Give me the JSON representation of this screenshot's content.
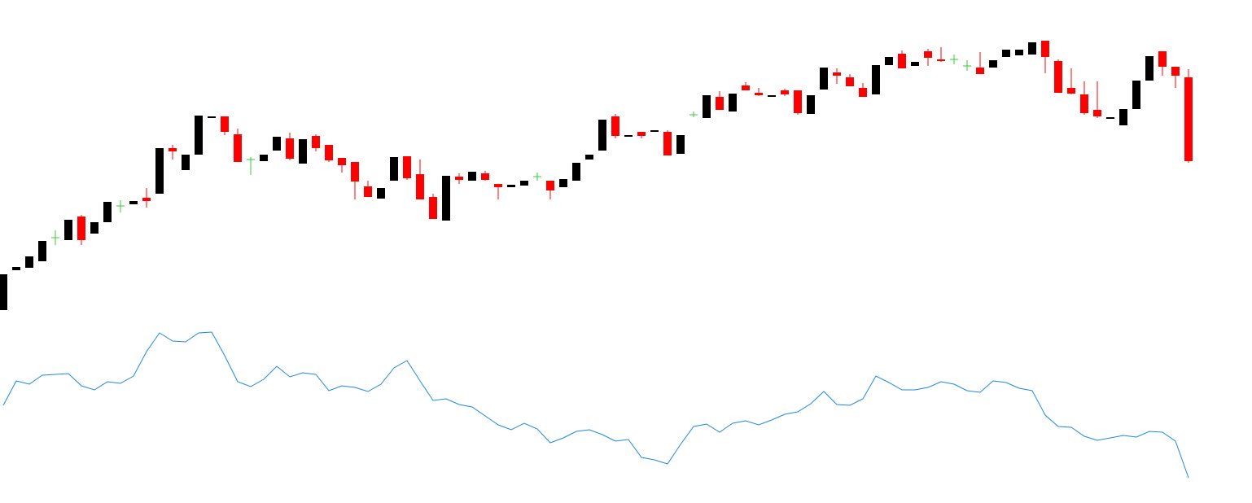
{
  "chart_data": [
    {
      "type": "candlestick",
      "open": [
        19,
        68,
        71,
        79,
        108,
        105,
        134,
        113,
        127,
        147,
        149,
        157,
        162,
        218,
        191,
        210,
        255,
        257,
        235,
        204,
        202,
        215,
        230,
        199,
        233,
        222,
        206,
        201,
        171,
        156,
        178,
        208,
        186,
        158,
        129,
        183,
        178,
        187,
        174,
        170,
        172,
        183,
        178,
        170,
        178,
        204,
        215,
        257,
        232,
        238,
        238,
        238,
        211,
        259,
        255,
        281,
        263,
        295,
        286,
        281,
        289,
        289,
        260,
        290,
        311,
        305,
        292,
        284,
        320,
        334,
        319,
        337,
        327,
        327,
        319,
        317,
        317,
        330,
        332,
        333,
        350,
        325,
        292,
        284,
        265,
        254,
        246,
        266,
        301,
        337,
        318,
        305
      ],
      "high": [
        63,
        72,
        85,
        104,
        117,
        130,
        136,
        127,
        152,
        154,
        153,
        169,
        218,
        222,
        210,
        258,
        257,
        257,
        242,
        207,
        210,
        232,
        237,
        229,
        235,
        222,
        206,
        201,
        178,
        169,
        207,
        208,
        204,
        162,
        184,
        187,
        189,
        190,
        174,
        173,
        178,
        188,
        178,
        180,
        200,
        210,
        253,
        260,
        234,
        238,
        240,
        240,
        234,
        263,
        283,
        288,
        285,
        299,
        292,
        283,
        291,
        289,
        283,
        317,
        316,
        309,
        298,
        320,
        330,
        338,
        324,
        340,
        342,
        333,
        326,
        336,
        326,
        339,
        339,
        348,
        350,
        327,
        316,
        300,
        300,
        256,
        266,
        301,
        331,
        337,
        318,
        315
      ],
      "low": [
        19,
        68,
        71,
        79,
        99,
        105,
        99,
        113,
        127,
        139,
        149,
        145,
        162,
        204,
        191,
        210,
        255,
        234,
        201,
        185,
        202,
        215,
        203,
        199,
        214,
        201,
        188,
        155,
        158,
        156,
        178,
        179,
        155,
        131,
        129,
        174,
        178,
        178,
        155,
        170,
        172,
        178,
        155,
        170,
        178,
        204,
        215,
        230,
        232,
        230,
        238,
        209,
        211,
        256,
        255,
        265,
        263,
        289,
        282,
        281,
        282,
        259,
        260,
        290,
        297,
        294,
        281,
        284,
        320,
        316,
        319,
        319,
        324,
        321,
        313,
        309,
        317,
        330,
        332,
        333,
        310,
        286,
        284,
        259,
        255,
        254,
        246,
        266,
        301,
        307,
        292,
        200
      ],
      "close": [
        63,
        72,
        85,
        104,
        108,
        130,
        105,
        127,
        152,
        147,
        153,
        153,
        218,
        214,
        210,
        258,
        257,
        238,
        201,
        204,
        210,
        232,
        205,
        229,
        218,
        203,
        197,
        177,
        158,
        169,
        207,
        181,
        155,
        131,
        184,
        179,
        189,
        179,
        170,
        173,
        178,
        183,
        166,
        180,
        200,
        210,
        253,
        233,
        234,
        233,
        240,
        209,
        234,
        259,
        283,
        265,
        285,
        289,
        283,
        283,
        284,
        261,
        283,
        317,
        307,
        294,
        281,
        320,
        330,
        316,
        324,
        329,
        325,
        327,
        319,
        309,
        326,
        339,
        339,
        348,
        330,
        286,
        285,
        261,
        257,
        256,
        266,
        301,
        331,
        318,
        307,
        202
      ],
      "up_color": "#000000",
      "down_color": "#ff0000",
      "flat_color": "#33cc33",
      "ylim": [
        10,
        360
      ]
    },
    {
      "type": "line",
      "values": [
        102,
        132,
        128,
        139,
        140,
        141,
        126,
        121,
        131,
        129,
        138,
        168,
        191,
        181,
        180,
        191,
        192,
        163,
        131,
        125,
        134,
        150,
        137,
        142,
        140,
        120,
        126,
        124,
        119,
        128,
        148,
        157,
        132,
        108,
        110,
        103,
        100,
        89,
        78,
        72,
        80,
        73,
        56,
        62,
        70,
        72,
        66,
        58,
        60,
        38,
        35,
        30,
        54,
        76,
        79,
        69,
        80,
        83,
        78,
        84,
        91,
        94,
        104,
        119,
        103,
        102,
        110,
        138,
        130,
        121,
        121,
        124,
        131,
        128,
        120,
        118,
        132,
        130,
        123,
        120,
        90,
        76,
        75,
        64,
        59,
        62,
        65,
        63,
        70,
        69,
        58,
        13
      ],
      "color": "#1e88e5",
      "ylim": [
        0,
        200
      ]
    }
  ]
}
